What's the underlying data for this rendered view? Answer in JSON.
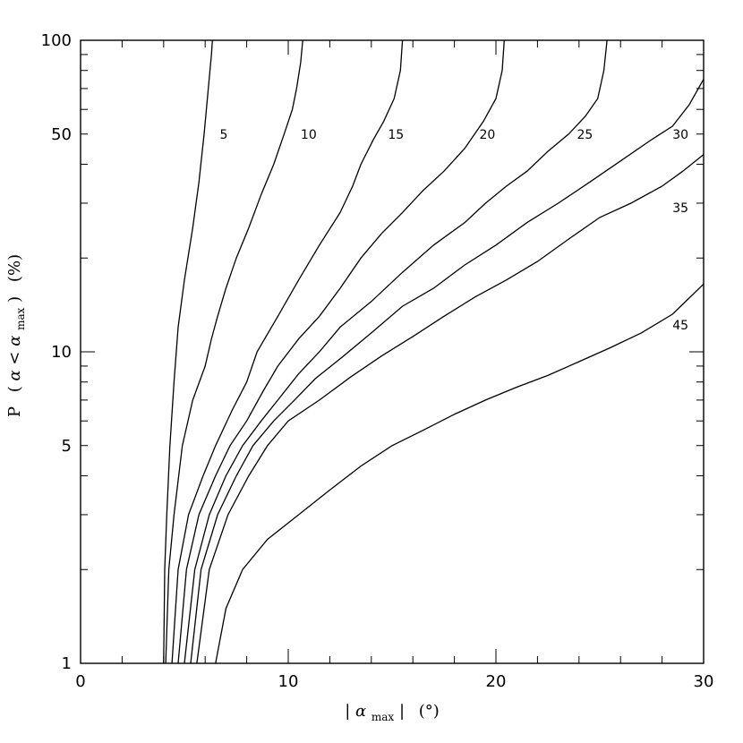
{
  "chart_data": {
    "type": "line",
    "xlabel": {
      "open": "|",
      "symbol": "α",
      "subscript": "max",
      "close": "|",
      "unit": "(°)"
    },
    "ylabel": {
      "prefix": "P",
      "open": "(",
      "symbol_a": "α",
      "lt": "<",
      "symbol_b": "α",
      "subscript": "max",
      "close": ")",
      "unit": "(%)"
    },
    "xlim": [
      0,
      30
    ],
    "ylim": [
      1,
      100
    ],
    "yscale": "log",
    "x_major_ticks": [
      0,
      10,
      20,
      30
    ],
    "x_tick_labels": [
      "0",
      "10",
      "20",
      "30"
    ],
    "y_major_ticks": [
      1,
      5,
      10,
      50,
      100
    ],
    "y_tick_labels": [
      "1",
      "5",
      "10",
      "50",
      "100"
    ],
    "grid": false,
    "series": [
      {
        "label": "5",
        "label_pos": [
          6.7,
          50
        ],
        "points": [
          [
            4.0,
            1
          ],
          [
            4.05,
            2
          ],
          [
            4.15,
            3
          ],
          [
            4.3,
            5
          ],
          [
            4.5,
            8
          ],
          [
            4.7,
            12
          ],
          [
            5.0,
            17
          ],
          [
            5.4,
            25
          ],
          [
            5.7,
            35
          ],
          [
            5.95,
            50
          ],
          [
            6.15,
            70
          ],
          [
            6.3,
            90
          ],
          [
            6.35,
            100
          ]
        ]
      },
      {
        "label": "10",
        "label_pos": [
          10.6,
          50
        ],
        "points": [
          [
            4.1,
            1
          ],
          [
            4.25,
            2
          ],
          [
            4.5,
            3
          ],
          [
            4.9,
            5
          ],
          [
            5.4,
            7
          ],
          [
            6.0,
            9
          ],
          [
            6.3,
            11
          ],
          [
            6.6,
            13
          ],
          [
            7.0,
            16
          ],
          [
            7.5,
            20
          ],
          [
            8.1,
            25
          ],
          [
            8.7,
            32
          ],
          [
            9.3,
            40
          ],
          [
            9.8,
            50
          ],
          [
            10.2,
            60
          ],
          [
            10.4,
            70
          ],
          [
            10.6,
            85
          ],
          [
            10.7,
            100
          ]
        ]
      },
      {
        "label": "15",
        "label_pos": [
          14.8,
          50
        ],
        "points": [
          [
            4.4,
            1
          ],
          [
            4.7,
            2
          ],
          [
            5.2,
            3
          ],
          [
            5.9,
            4
          ],
          [
            6.5,
            5
          ],
          [
            7.3,
            6.5
          ],
          [
            8.0,
            8
          ],
          [
            8.5,
            10
          ],
          [
            9.5,
            13
          ],
          [
            10.5,
            17
          ],
          [
            11.5,
            22
          ],
          [
            12.5,
            28
          ],
          [
            13.1,
            34
          ],
          [
            13.5,
            40
          ],
          [
            14.1,
            48
          ],
          [
            14.6,
            55
          ],
          [
            15.1,
            65
          ],
          [
            15.4,
            80
          ],
          [
            15.5,
            100
          ]
        ]
      },
      {
        "label": "20",
        "label_pos": [
          19.2,
          50
        ],
        "points": [
          [
            4.7,
            1
          ],
          [
            5.1,
            2
          ],
          [
            5.7,
            3
          ],
          [
            6.5,
            4
          ],
          [
            7.2,
            5
          ],
          [
            8.0,
            6
          ],
          [
            8.8,
            7.5
          ],
          [
            9.5,
            9
          ],
          [
            10.5,
            11
          ],
          [
            11.5,
            13
          ],
          [
            12.5,
            16
          ],
          [
            13.5,
            20
          ],
          [
            14.5,
            24
          ],
          [
            15.5,
            28
          ],
          [
            16.5,
            33
          ],
          [
            17.5,
            38
          ],
          [
            18.5,
            45
          ],
          [
            19.4,
            55
          ],
          [
            20.0,
            65
          ],
          [
            20.3,
            80
          ],
          [
            20.4,
            100
          ]
        ]
      },
      {
        "label": "25",
        "label_pos": [
          23.9,
          50
        ],
        "points": [
          [
            5.0,
            1
          ],
          [
            5.5,
            2
          ],
          [
            6.2,
            3
          ],
          [
            7.0,
            4
          ],
          [
            7.8,
            5
          ],
          [
            8.7,
            6
          ],
          [
            9.5,
            7
          ],
          [
            10.5,
            8.5
          ],
          [
            11.5,
            10
          ],
          [
            12.5,
            12
          ],
          [
            14.0,
            14.5
          ],
          [
            15.5,
            18
          ],
          [
            17.0,
            22
          ],
          [
            18.5,
            26
          ],
          [
            19.5,
            30
          ],
          [
            20.5,
            34
          ],
          [
            21.5,
            38
          ],
          [
            22.5,
            44
          ],
          [
            23.5,
            50
          ],
          [
            24.3,
            57
          ],
          [
            24.9,
            65
          ],
          [
            25.2,
            80
          ],
          [
            25.35,
            100
          ]
        ]
      },
      {
        "label": "30",
        "label_pos": [
          28.5,
          50
        ],
        "points": [
          [
            5.3,
            1
          ],
          [
            5.8,
            2
          ],
          [
            6.6,
            3
          ],
          [
            7.5,
            4
          ],
          [
            8.3,
            5
          ],
          [
            9.3,
            6
          ],
          [
            10.3,
            7
          ],
          [
            11.3,
            8.2
          ],
          [
            12.5,
            9.5
          ],
          [
            14.0,
            11.5
          ],
          [
            15.5,
            14
          ],
          [
            17.0,
            16
          ],
          [
            18.5,
            19
          ],
          [
            20.0,
            22
          ],
          [
            21.5,
            26
          ],
          [
            23.0,
            30
          ],
          [
            24.5,
            35
          ],
          [
            26.0,
            41
          ],
          [
            27.5,
            48
          ],
          [
            28.5,
            53
          ],
          [
            29.3,
            62
          ],
          [
            30.0,
            75
          ]
        ]
      },
      {
        "label": "35",
        "label_pos": [
          28.5,
          29
        ],
        "points": [
          [
            5.6,
            1
          ],
          [
            6.2,
            2
          ],
          [
            7.1,
            3
          ],
          [
            8.1,
            4
          ],
          [
            9.0,
            5
          ],
          [
            10.0,
            6
          ],
          [
            11.5,
            7
          ],
          [
            13.0,
            8.3
          ],
          [
            14.5,
            9.7
          ],
          [
            16.0,
            11.2
          ],
          [
            17.5,
            13
          ],
          [
            19.0,
            15
          ],
          [
            20.5,
            17
          ],
          [
            22.0,
            19.5
          ],
          [
            23.5,
            23
          ],
          [
            25.0,
            27
          ],
          [
            26.5,
            30
          ],
          [
            28.0,
            34
          ],
          [
            29.0,
            38
          ],
          [
            30.0,
            43
          ]
        ]
      },
      {
        "label": "45",
        "label_pos": [
          28.5,
          12.2
        ],
        "points": [
          [
            6.5,
            1
          ],
          [
            7.0,
            1.5
          ],
          [
            7.8,
            2
          ],
          [
            9.0,
            2.5
          ],
          [
            10.5,
            3
          ],
          [
            12.0,
            3.6
          ],
          [
            13.5,
            4.3
          ],
          [
            15.0,
            5
          ],
          [
            16.5,
            5.6
          ],
          [
            18.0,
            6.3
          ],
          [
            19.5,
            7
          ],
          [
            21.0,
            7.7
          ],
          [
            22.5,
            8.4
          ],
          [
            24.0,
            9.3
          ],
          [
            25.5,
            10.3
          ],
          [
            27.0,
            11.5
          ],
          [
            28.5,
            13.2
          ],
          [
            30.0,
            16.5
          ]
        ]
      }
    ]
  }
}
